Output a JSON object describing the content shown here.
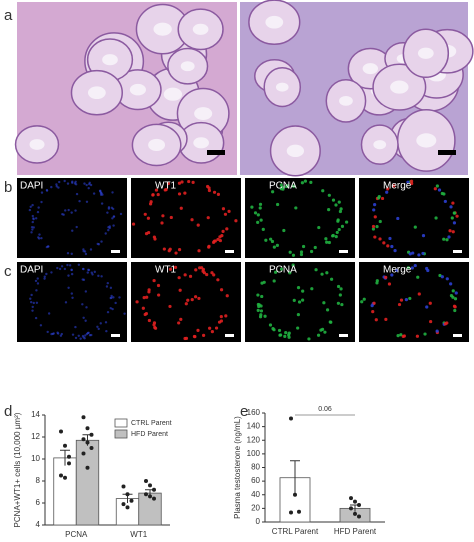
{
  "figure": {
    "panel_labels": [
      "a",
      "b",
      "c",
      "d",
      "e"
    ],
    "rows": [
      {
        "labels": [
          "DAPI",
          "WT1",
          "PCNA",
          "Merge"
        ]
      },
      {
        "labels": [
          "DAPI",
          "WT1",
          "PCNA",
          "Merge"
        ]
      }
    ]
  },
  "chart_data": [
    {
      "type": "bar",
      "y_label": "PCNA+WT1+ cells (10,000 µm²)",
      "categories": [
        "PCNA",
        "WT1"
      ],
      "series": [
        {
          "name": "CTRL Parent",
          "color": "#ffffff",
          "values": [
            10.1,
            6.4
          ],
          "errors": [
            0.7,
            0.4
          ],
          "points": [
            [
              12.5,
              11.2,
              10.2,
              8.5,
              8.3,
              9.6
            ],
            [
              7.5,
              6.8,
              6.2,
              5.9,
              5.6
            ]
          ]
        },
        {
          "name": "HFD Parent",
          "color": "#c0c0c0",
          "values": [
            11.7,
            6.9
          ],
          "errors": [
            0.5,
            0.3
          ],
          "points": [
            [
              13.8,
              12.8,
              12.2,
              11.8,
              11.5,
              11.0,
              10.5,
              9.2
            ],
            [
              8.0,
              7.6,
              7.2,
              6.8,
              6.6,
              6.4
            ]
          ]
        }
      ],
      "ylim": [
        4,
        14
      ],
      "yticks": [
        4,
        6,
        8,
        10,
        12,
        14
      ],
      "legend": "upper right"
    },
    {
      "type": "bar",
      "y_label": "Plasma testosterone (ng/mL)",
      "categories": [
        "CTRL Parent",
        "HFD Parent"
      ],
      "values": [
        65,
        20
      ],
      "errors": [
        25,
        5
      ],
      "colors": [
        "#ffffff",
        "#c0c0c0"
      ],
      "points": [
        [
          152,
          40,
          15,
          14
        ],
        [
          35,
          30,
          25,
          20,
          12,
          8
        ]
      ],
      "ylim": [
        0,
        160
      ],
      "yticks": [
        0,
        20,
        40,
        60,
        80,
        100,
        120,
        140,
        160
      ],
      "annotation": "0.06"
    }
  ]
}
